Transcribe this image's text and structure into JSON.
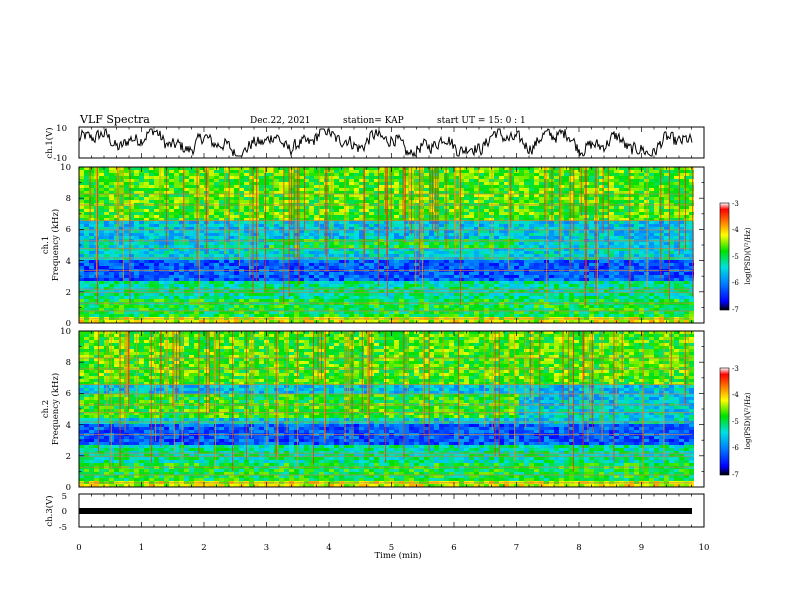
{
  "header": {
    "title": "VLF Spectra",
    "date": "Dec.22, 2021",
    "station": "station= KAP",
    "start": "start  UT =   15: 0  : 1"
  },
  "chart_data": [
    {
      "type": "line",
      "ylabel": "ch.1(V)",
      "ylim": [
        -10,
        10
      ],
      "yticks": [
        "10",
        "-10"
      ],
      "xlim": [
        0,
        10
      ]
    },
    {
      "type": "heatmap",
      "ylabel_top": "ch.1",
      "ylabel_bottom": "Frequency (kHz)",
      "ylim": [
        0,
        10
      ],
      "yticks": [
        "10",
        "8",
        "6",
        "4",
        "2",
        "0"
      ],
      "colorbar": {
        "label": "log(PSD)(V²/Hz)",
        "range": [
          -7,
          -3
        ],
        "ticks": [
          "-3",
          "-4",
          "-5",
          "-6",
          "-7"
        ]
      }
    },
    {
      "type": "heatmap",
      "ylabel_top": "ch.2",
      "ylabel_bottom": "Frequency (kHz)",
      "ylim": [
        0,
        10
      ],
      "yticks": [
        "10",
        "8",
        "6",
        "4",
        "2",
        "0"
      ],
      "colorbar": {
        "label": "log(PSD)(V²/Hz)",
        "range": [
          -7,
          -3
        ],
        "ticks": [
          "-3",
          "-4",
          "-5",
          "-6",
          "-7"
        ]
      }
    },
    {
      "type": "line",
      "ylabel": "ch.3(V)",
      "ylim": [
        -5,
        5
      ],
      "yticks": [
        "5",
        "0",
        "-5"
      ],
      "xlim": [
        0,
        10
      ]
    }
  ],
  "xaxis": {
    "label": "Time (min)",
    "ticks": [
      "0",
      "1",
      "2",
      "3",
      "4",
      "5",
      "6",
      "7",
      "8",
      "9",
      "10"
    ]
  }
}
